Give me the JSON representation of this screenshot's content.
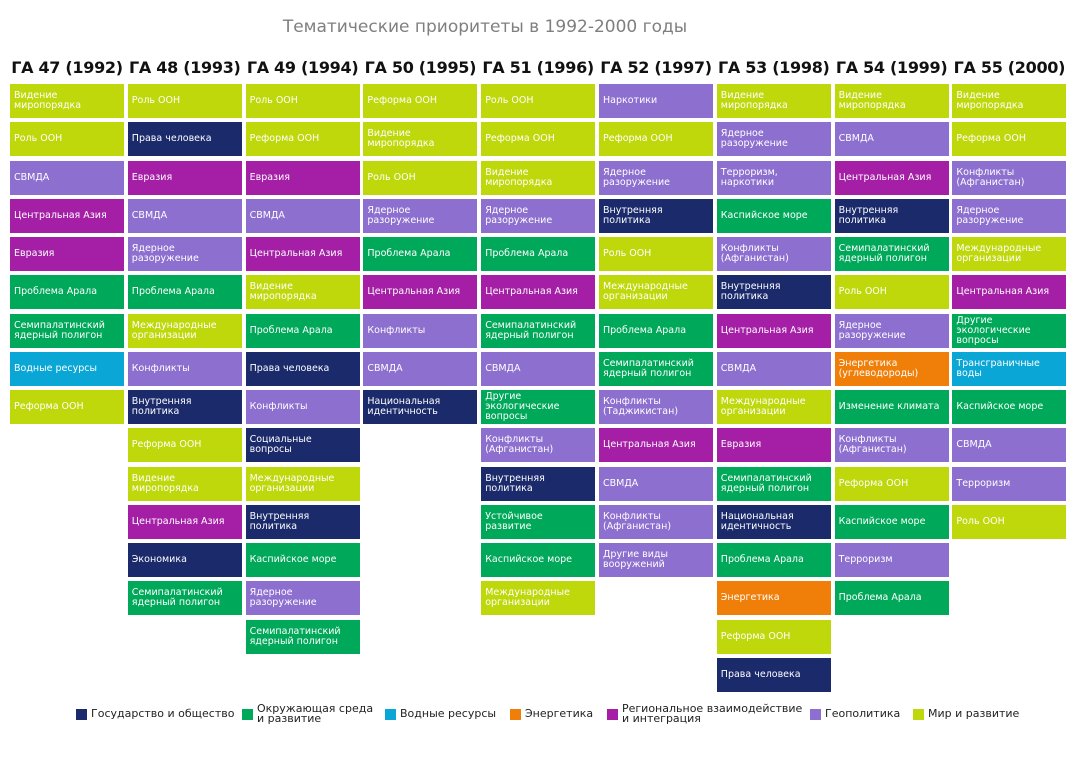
{
  "title": "Тематические приоритеты в 1992-2000 годы",
  "colors": {
    "state": "#1b2a6b",
    "env": "#00a859",
    "water": "#0aa6d6",
    "energy": "#f07f0a",
    "region": "#a51fa6",
    "geo": "#8d6fcf",
    "peace": "#bfd80b"
  },
  "legend": [
    {
      "key": "state",
      "label": "Государство и общество"
    },
    {
      "key": "env",
      "label": "Окружающая среда\nи развитие"
    },
    {
      "key": "water",
      "label": "Водные ресурсы"
    },
    {
      "key": "energy",
      "label": "Энергетика"
    },
    {
      "key": "region",
      "label": "Региональное взаимодействие\nи интеграция"
    },
    {
      "key": "geo",
      "label": "Геополитика"
    },
    {
      "key": "peace",
      "label": "Мир и развитие"
    }
  ],
  "chart_data": {
    "type": "table",
    "title": "Тематические приоритеты в 1992-2000 годы",
    "columns": [
      {
        "header": "ГА 47 (1992)",
        "items": [
          {
            "text": "Видение миропорядка",
            "cat": "peace"
          },
          {
            "text": "Роль ООН",
            "cat": "peace"
          },
          {
            "text": "СВМДА",
            "cat": "geo"
          },
          {
            "text": "Центральная Азия",
            "cat": "region"
          },
          {
            "text": "Евразия",
            "cat": "region"
          },
          {
            "text": "Проблема Арала",
            "cat": "env"
          },
          {
            "text": "Семипалатинский ядерный полигон",
            "cat": "env"
          },
          {
            "text": "Водные ресурсы",
            "cat": "water"
          },
          {
            "text": "Реформа ООН",
            "cat": "peace"
          }
        ]
      },
      {
        "header": "ГА 48 (1993)",
        "items": [
          {
            "text": "Роль ООН",
            "cat": "peace"
          },
          {
            "text": "Права человека",
            "cat": "state"
          },
          {
            "text": "Евразия",
            "cat": "region"
          },
          {
            "text": "СВМДА",
            "cat": "geo"
          },
          {
            "text": "Ядерное разоружение",
            "cat": "geo"
          },
          {
            "text": "Проблема Арала",
            "cat": "env"
          },
          {
            "text": "Международные организации",
            "cat": "peace"
          },
          {
            "text": "Конфликты",
            "cat": "geo"
          },
          {
            "text": "Внутренняя политика",
            "cat": "state"
          },
          {
            "text": "Реформа ООН",
            "cat": "peace"
          },
          {
            "text": "Видение миропорядка",
            "cat": "peace"
          },
          {
            "text": "Центральная Азия",
            "cat": "region"
          },
          {
            "text": "Экономика",
            "cat": "state"
          },
          {
            "text": "Семипалатинский ядерный полигон",
            "cat": "env"
          }
        ]
      },
      {
        "header": "ГА 49 (1994)",
        "items": [
          {
            "text": "Роль ООН",
            "cat": "peace"
          },
          {
            "text": "Реформа ООН",
            "cat": "peace"
          },
          {
            "text": "Евразия",
            "cat": "region"
          },
          {
            "text": "СВМДА",
            "cat": "geo"
          },
          {
            "text": "Центральная Азия",
            "cat": "region"
          },
          {
            "text": "Видение миропорядка",
            "cat": "peace"
          },
          {
            "text": "Проблема Арала",
            "cat": "env"
          },
          {
            "text": "Права человека",
            "cat": "state"
          },
          {
            "text": "Конфликты",
            "cat": "geo"
          },
          {
            "text": "Социальные вопросы",
            "cat": "state"
          },
          {
            "text": "Международные организации",
            "cat": "peace"
          },
          {
            "text": "Внутренняя политика",
            "cat": "state"
          },
          {
            "text": "Каспийское море",
            "cat": "env"
          },
          {
            "text": "Ядерное разоружение",
            "cat": "geo"
          },
          {
            "text": "Семипалатинский ядерный полигон",
            "cat": "env"
          }
        ]
      },
      {
        "header": "ГА 50 (1995)",
        "items": [
          {
            "text": "Реформа ООН",
            "cat": "peace"
          },
          {
            "text": "Видение миропорядка",
            "cat": "peace"
          },
          {
            "text": "Роль ООН",
            "cat": "peace"
          },
          {
            "text": "Ядерное разоружение",
            "cat": "geo"
          },
          {
            "text": "Проблема Арала",
            "cat": "env"
          },
          {
            "text": "Центральная Азия",
            "cat": "region"
          },
          {
            "text": "Конфликты",
            "cat": "geo"
          },
          {
            "text": "СВМДА",
            "cat": "geo"
          },
          {
            "text": "Национальная идентичность",
            "cat": "state"
          }
        ]
      },
      {
        "header": "ГА 51 (1996)",
        "items": [
          {
            "text": "Роль ООН",
            "cat": "peace"
          },
          {
            "text": "Реформа ООН",
            "cat": "peace"
          },
          {
            "text": "Видение миропорядка",
            "cat": "peace"
          },
          {
            "text": "Ядерное разоружение",
            "cat": "geo"
          },
          {
            "text": "Проблема Арала",
            "cat": "env"
          },
          {
            "text": "Центральная Азия",
            "cat": "region"
          },
          {
            "text": "Семипалатинский ядерный полигон",
            "cat": "env"
          },
          {
            "text": "СВМДА",
            "cat": "geo"
          },
          {
            "text": "Другие экологические вопросы",
            "cat": "env"
          },
          {
            "text": "Конфликты (Афганистан)",
            "cat": "geo"
          },
          {
            "text": "Внутренняя политика",
            "cat": "state"
          },
          {
            "text": "Устойчивое развитие",
            "cat": "env"
          },
          {
            "text": "Каспийское море",
            "cat": "env"
          },
          {
            "text": "Международные организации",
            "cat": "peace"
          }
        ]
      },
      {
        "header": "ГА 52 (1997)",
        "items": [
          {
            "text": "Наркотики",
            "cat": "geo"
          },
          {
            "text": "Реформа ООН",
            "cat": "peace"
          },
          {
            "text": "Ядерное разоружение",
            "cat": "geo"
          },
          {
            "text": "Внутренняя политика",
            "cat": "state"
          },
          {
            "text": "Роль ООН",
            "cat": "peace"
          },
          {
            "text": "Международные организации",
            "cat": "peace"
          },
          {
            "text": "Проблема Арала",
            "cat": "env"
          },
          {
            "text": "Семипалатинский ядерный полигон",
            "cat": "env"
          },
          {
            "text": "Конфликты (Таджикистан)",
            "cat": "geo"
          },
          {
            "text": "Центральная Азия",
            "cat": "region"
          },
          {
            "text": "СВМДА",
            "cat": "geo"
          },
          {
            "text": "Конфликты (Афганистан)",
            "cat": "geo"
          },
          {
            "text": "Другие виды вооружений",
            "cat": "geo"
          }
        ]
      },
      {
        "header": "ГА 53 (1998)",
        "items": [
          {
            "text": "Видение миропорядка",
            "cat": "peace"
          },
          {
            "text": "Ядерное разоружение",
            "cat": "geo"
          },
          {
            "text": "Терроризм, наркотики",
            "cat": "geo"
          },
          {
            "text": "Каспийское море",
            "cat": "env"
          },
          {
            "text": "Конфликты (Афганистан)",
            "cat": "geo"
          },
          {
            "text": "Внутренняя политика",
            "cat": "state"
          },
          {
            "text": "Центральная Азия",
            "cat": "region"
          },
          {
            "text": "СВМДА",
            "cat": "geo"
          },
          {
            "text": "Международные организации",
            "cat": "peace"
          },
          {
            "text": "Евразия",
            "cat": "region"
          },
          {
            "text": "Семипалатинский ядерный полигон",
            "cat": "env"
          },
          {
            "text": "Национальная идентичность",
            "cat": "state"
          },
          {
            "text": "Проблема Арала",
            "cat": "env"
          },
          {
            "text": "Энергетика",
            "cat": "energy"
          },
          {
            "text": "Реформа ООН",
            "cat": "peace"
          },
          {
            "text": "Права человека",
            "cat": "state"
          }
        ]
      },
      {
        "header": "ГА 54 (1999)",
        "items": [
          {
            "text": "Видение миропорядка",
            "cat": "peace"
          },
          {
            "text": "СВМДА",
            "cat": "geo"
          },
          {
            "text": "Центральная Азия",
            "cat": "region"
          },
          {
            "text": "Внутренняя политика",
            "cat": "state"
          },
          {
            "text": "Семипалатинский ядерный полигон",
            "cat": "env"
          },
          {
            "text": "Роль ООН",
            "cat": "peace"
          },
          {
            "text": "Ядерное разоружение",
            "cat": "geo"
          },
          {
            "text": "Энергетика (углеводороды)",
            "cat": "energy"
          },
          {
            "text": "Изменение климата",
            "cat": "env"
          },
          {
            "text": "Конфликты (Афганистан)",
            "cat": "geo"
          },
          {
            "text": "Реформа ООН",
            "cat": "peace"
          },
          {
            "text": "Каспийское море",
            "cat": "env"
          },
          {
            "text": "Терроризм",
            "cat": "geo"
          },
          {
            "text": "Проблема Арала",
            "cat": "env"
          }
        ]
      },
      {
        "header": "ГА 55 (2000)",
        "items": [
          {
            "text": "Видение миропорядка",
            "cat": "peace"
          },
          {
            "text": "Реформа ООН",
            "cat": "peace"
          },
          {
            "text": "Конфликты (Афганистан)",
            "cat": "geo"
          },
          {
            "text": "Ядерное разоружение",
            "cat": "geo"
          },
          {
            "text": "Международные организации",
            "cat": "peace"
          },
          {
            "text": "Центральная Азия",
            "cat": "region"
          },
          {
            "text": "Другие экологические вопросы",
            "cat": "env"
          },
          {
            "text": "Трансграничные воды",
            "cat": "water"
          },
          {
            "text": "Каспийское море",
            "cat": "env"
          },
          {
            "text": "СВМДА",
            "cat": "geo"
          },
          {
            "text": "Терроризм",
            "cat": "geo"
          },
          {
            "text": "Роль ООН",
            "cat": "peace"
          }
        ]
      }
    ]
  }
}
